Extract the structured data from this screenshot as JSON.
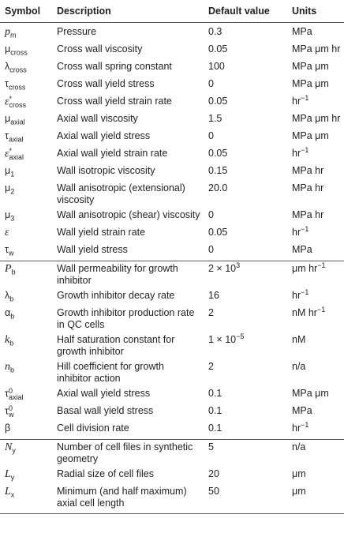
{
  "table": {
    "header": [
      "Symbol",
      "Description",
      "Default value",
      "Units"
    ],
    "groups": [
      [
        [
          {
            "base": "p",
            "sub": "m",
            "italic": true
          },
          "Pressure",
          "0.3",
          "MPa"
        ],
        [
          {
            "base": "μ",
            "sub": "cross"
          },
          "Cross wall viscosity",
          "0.05",
          "MPa μm hr"
        ],
        [
          {
            "base": "λ",
            "sub": "cross"
          },
          "Cross wall spring constant",
          "100",
          "MPa μm"
        ],
        [
          {
            "base": "τ",
            "sub": "cross"
          },
          "Cross wall yield stress",
          "0",
          "MPa μm"
        ],
        [
          {
            "base": "ε",
            "sup": "*",
            "sub": "cross",
            "italic": true
          },
          "Cross wall yield strain rate",
          "0.05",
          {
            "base": "hr",
            "sup": "−1"
          }
        ],
        [
          {
            "base": "μ",
            "sub": "axial"
          },
          "Axial wall viscosity",
          "1.5",
          "MPa μm hr"
        ],
        [
          {
            "base": "τ",
            "sub": "axial"
          },
          "Axial wall yield stress",
          "0",
          "MPa μm"
        ],
        [
          {
            "base": "ε",
            "sup": "*",
            "sub": "axial",
            "italic": true
          },
          "Axial wall yield strain rate",
          "0.05",
          {
            "base": "hr",
            "sup": "−1"
          }
        ],
        [
          {
            "base": "μ",
            "sub": "1"
          },
          "Wall isotropic viscosity",
          "0.15",
          "MPa hr"
        ],
        [
          {
            "base": "μ",
            "sub": "2"
          },
          "Wall anisotropic (extensional) viscosity",
          "20.0",
          "MPa hr"
        ],
        [
          {
            "base": "μ",
            "sub": "3"
          },
          "Wall anisotropic (shear) viscosity",
          "0",
          "MPa hr"
        ],
        [
          {
            "base": "ε",
            "italic": true
          },
          "Wall yield strain rate",
          "0.05",
          {
            "base": "hr",
            "sup": "−1"
          }
        ],
        [
          {
            "base": "τ",
            "sub": "w"
          },
          "Wall yield stress",
          "0",
          "MPa"
        ]
      ],
      [
        [
          {
            "base": "P",
            "sub": "b",
            "italic": true
          },
          "Wall permeability for growth inhibitor",
          {
            "base": "2 × 10",
            "sup": "3"
          },
          {
            "base": "μm hr",
            "sup": "−1"
          }
        ],
        [
          {
            "base": "λ",
            "sub": "b"
          },
          "Growth inhibitor decay rate",
          "16",
          {
            "base": "hr",
            "sup": "−1"
          }
        ],
        [
          {
            "base": "α",
            "sub": "b"
          },
          "Growth inhibitor production rate in QC cells",
          "2",
          {
            "base": "nM hr",
            "sup": "−1"
          }
        ],
        [
          {
            "base": "k",
            "sub": "b",
            "italic": true
          },
          "Half saturation constant for growth inhibitor",
          {
            "base": "1 × 10",
            "sup": "−5"
          },
          "nM"
        ],
        [
          {
            "base": "n",
            "sub": "b",
            "italic": true
          },
          "Hill coefficient for growth inhibitor action",
          "2",
          "n/a"
        ],
        [
          {
            "base": "τ",
            "sup": "0",
            "sub": "axial"
          },
          "Axial wall yield stress",
          "0.1",
          "MPa μm"
        ],
        [
          {
            "base": "τ",
            "sup": "0",
            "sub": "w"
          },
          "Basal wall yield stress",
          "0.1",
          "MPa"
        ],
        [
          {
            "base": "β"
          },
          "Cell division rate",
          "0.1",
          {
            "base": "hr",
            "sup": "−1"
          }
        ]
      ],
      [
        [
          {
            "base": "N",
            "sub": "y",
            "italic": true
          },
          "Number of cell files in synthetic geometry",
          "5",
          "n/a"
        ],
        [
          {
            "base": "L",
            "sub": "y",
            "italic": true
          },
          "Radial size of cell files",
          "20",
          "μm"
        ],
        [
          {
            "base": "L",
            "sub": "x",
            "italic": true
          },
          "Minimum (and half maximum) axial cell length",
          "50",
          "μm"
        ]
      ]
    ]
  }
}
